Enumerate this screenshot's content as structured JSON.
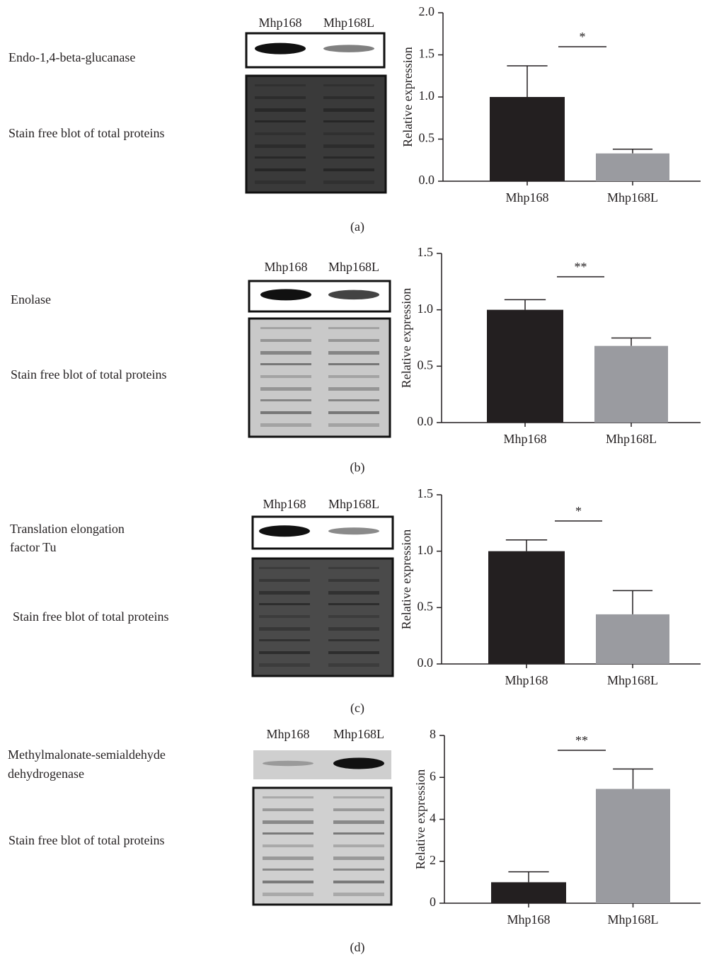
{
  "chart_data": [
    {
      "type": "bar",
      "panel_label": "(a)",
      "protein_label": [
        "Endo-1,4-beta-glucanase"
      ],
      "stain_label": "Stain free blot of total proteins",
      "blot_lanes": [
        "Mhp168",
        "Mhp168L"
      ],
      "ylabel": "Relative expression",
      "categories": [
        "Mhp168",
        "Mhp168L"
      ],
      "values": [
        1.0,
        0.33
      ],
      "errors": [
        0.37,
        0.05
      ],
      "colors": [
        "#231f20",
        "#9a9ba0"
      ],
      "annotation": "*",
      "ylim": [
        0,
        2.0
      ],
      "yticks": [
        {
          "value": 0,
          "label": "0.0"
        },
        {
          "value": 0.5,
          "label": "0.5"
        },
        {
          "value": 1.0,
          "label": "1.0"
        },
        {
          "value": 1.5,
          "label": "1.5"
        },
        {
          "value": 2.0,
          "label": "2.0"
        }
      ]
    },
    {
      "type": "bar",
      "panel_label": "(b)",
      "protein_label": [
        "Enolase"
      ],
      "stain_label": "Stain free blot of total proteins",
      "blot_lanes": [
        "Mhp168",
        "Mhp168L"
      ],
      "ylabel": "Relative expression",
      "categories": [
        "Mhp168",
        "Mhp168L"
      ],
      "values": [
        1.0,
        0.68
      ],
      "errors": [
        0.09,
        0.07
      ],
      "colors": [
        "#231f20",
        "#9a9ba0"
      ],
      "annotation": "**",
      "ylim": [
        0,
        1.5
      ],
      "yticks": [
        {
          "value": 0,
          "label": "0.0"
        },
        {
          "value": 0.5,
          "label": "0.5"
        },
        {
          "value": 1.0,
          "label": "1.0"
        },
        {
          "value": 1.5,
          "label": "1.5"
        }
      ]
    },
    {
      "type": "bar",
      "panel_label": "(c)",
      "protein_label": [
        "Translation elongation",
        "factor Tu"
      ],
      "stain_label": "Stain free blot of total proteins",
      "blot_lanes": [
        "Mhp168",
        "Mhp168L"
      ],
      "ylabel": "Relative expression",
      "categories": [
        "Mhp168",
        "Mhp168L"
      ],
      "values": [
        1.0,
        0.44
      ],
      "errors": [
        0.1,
        0.21
      ],
      "colors": [
        "#231f20",
        "#9a9ba0"
      ],
      "annotation": "*",
      "ylim": [
        0,
        1.5
      ],
      "yticks": [
        {
          "value": 0,
          "label": "0.0"
        },
        {
          "value": 0.5,
          "label": "0.5"
        },
        {
          "value": 1.0,
          "label": "1.0"
        },
        {
          "value": 1.5,
          "label": "1.5"
        }
      ]
    },
    {
      "type": "bar",
      "panel_label": "(d)",
      "protein_label": [
        "Methylmalonate-semialdehyde",
        "dehydrogenase"
      ],
      "stain_label": "Stain free blot of total proteins",
      "blot_lanes": [
        "Mhp168",
        "Mhp168L"
      ],
      "ylabel": "Relative expression",
      "categories": [
        "Mhp168",
        "Mhp168L"
      ],
      "values": [
        1.0,
        5.45
      ],
      "errors": [
        0.5,
        0.95
      ],
      "colors": [
        "#231f20",
        "#9a9ba0"
      ],
      "annotation": "**",
      "ylim": [
        0,
        8
      ],
      "yticks": [
        0,
        2,
        4,
        6,
        8
      ]
    }
  ]
}
